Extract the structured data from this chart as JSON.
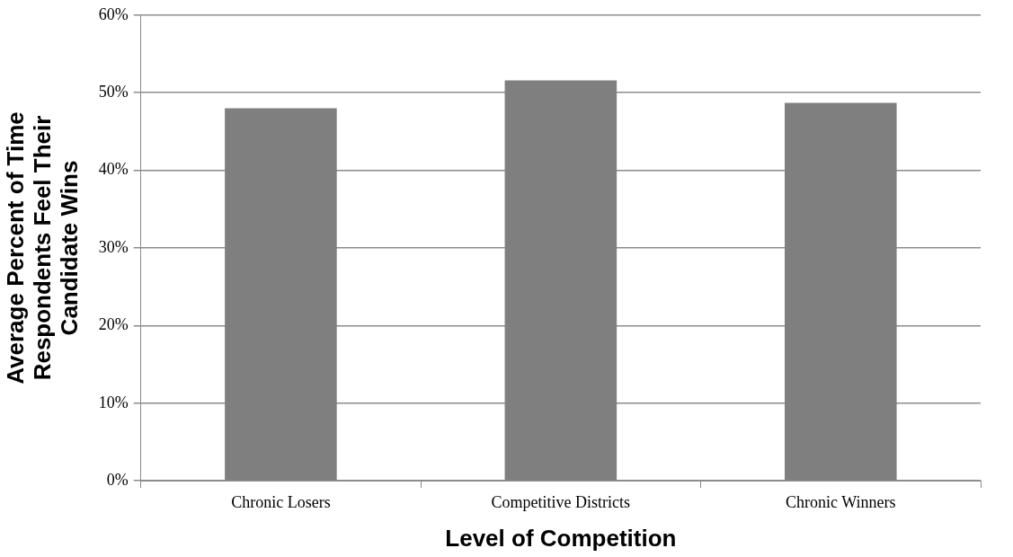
{
  "chart_data": {
    "type": "bar",
    "xlabel": "Level of Competition",
    "ylabel": "Average Percent of Time Respondents Feel Their Candidate Wins",
    "categories": [
      "Chronic Losers",
      "Competitive Districts",
      "Chronic Winners"
    ],
    "values": [
      48,
      51.6,
      48.7
    ],
    "color": "#7f7f7f",
    "ylim": [
      0,
      60
    ],
    "yticks": [
      {
        "value": 0,
        "label": "0%"
      },
      {
        "value": 10,
        "label": "10%"
      },
      {
        "value": 20,
        "label": "20%"
      },
      {
        "value": 30,
        "label": "30%"
      },
      {
        "value": 40,
        "label": "40%"
      },
      {
        "value": 50,
        "label": "50%"
      },
      {
        "value": 60,
        "label": "60%"
      }
    ],
    "grid": "y",
    "legend": false
  }
}
